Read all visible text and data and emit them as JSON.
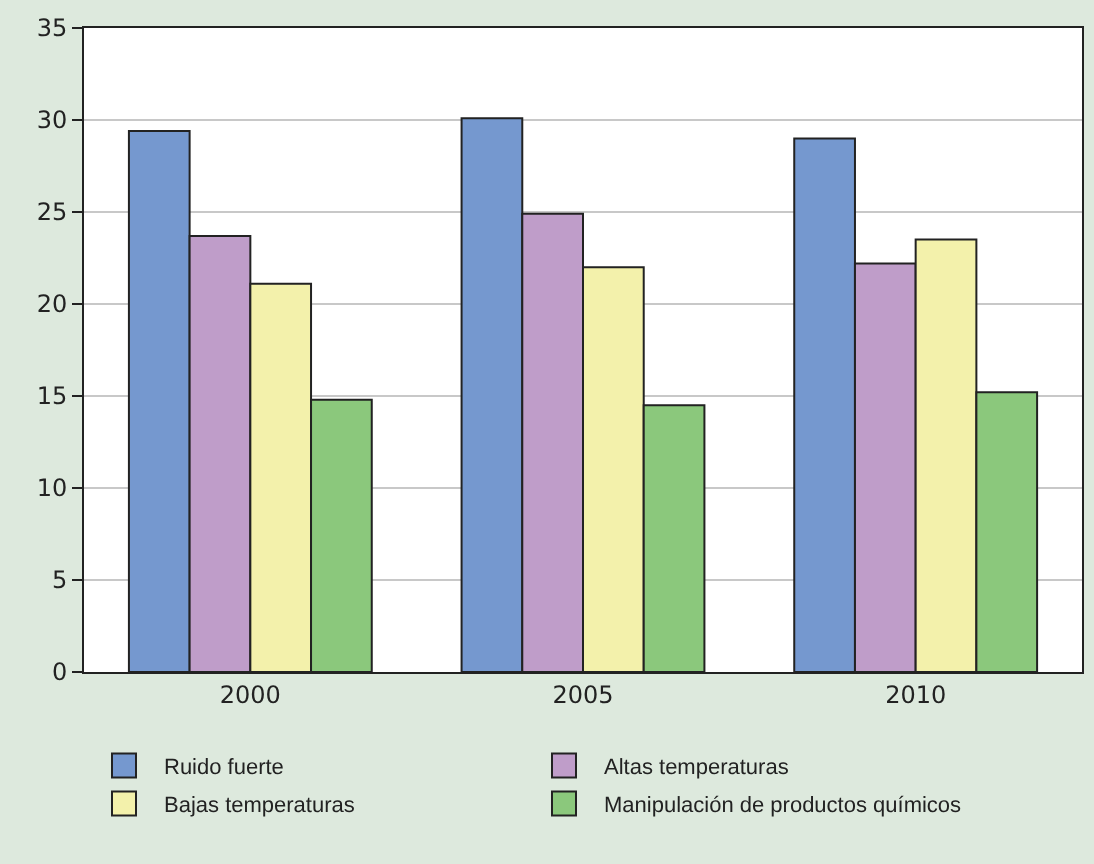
{
  "chart_data": {
    "type": "bar",
    "categories": [
      "2000",
      "2005",
      "2010"
    ],
    "series": [
      {
        "name": "Ruido fuerte",
        "color": "#7598cf",
        "values": [
          29.4,
          30.1,
          29.0
        ]
      },
      {
        "name": "Altas temperaturas",
        "color": "#bf9dc9",
        "values": [
          23.7,
          24.9,
          22.2
        ]
      },
      {
        "name": "Bajas temperaturas",
        "color": "#f3f1ab",
        "values": [
          21.1,
          22.0,
          23.5
        ]
      },
      {
        "name": "Manipulación de productos químicos",
        "color": "#8bc87c",
        "values": [
          14.8,
          14.5,
          15.2
        ]
      }
    ],
    "ylim": [
      0,
      35
    ],
    "yticks": [
      0,
      5,
      10,
      15,
      20,
      25,
      30,
      35
    ],
    "grid": "y",
    "legend": "bottom"
  }
}
